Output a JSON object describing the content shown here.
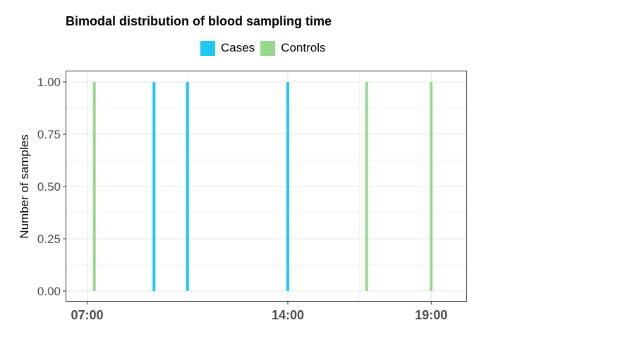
{
  "chart_data": {
    "type": "bar",
    "title": "Bimodal distribution of blood sampling time",
    "xlabel": "",
    "ylabel": "Number of samples",
    "xlim": [
      "06:15",
      "20:15"
    ],
    "ylim": [
      0,
      1.05
    ],
    "y_ticks": [
      0.0,
      0.25,
      0.5,
      0.75,
      1.0
    ],
    "y_tick_labels": [
      "0.00",
      "0.25",
      "0.50",
      "0.75",
      "1.00"
    ],
    "x_ticks": [
      "07:00",
      "14:00",
      "19:00"
    ],
    "x_tick_labels": [
      "07:00",
      "14:00",
      "19:00"
    ],
    "grid": true,
    "legend_position": "top",
    "series": [
      {
        "name": "Cases",
        "color": "#1EC8F0",
        "points": [
          {
            "x": "09:20",
            "y": 1
          },
          {
            "x": "10:30",
            "y": 1
          },
          {
            "x": "14:00",
            "y": 1
          }
        ]
      },
      {
        "name": "Controls",
        "color": "#97D98A",
        "points": [
          {
            "x": "07:15",
            "y": 1
          },
          {
            "x": "16:45",
            "y": 1
          },
          {
            "x": "19:00",
            "y": 1
          }
        ]
      }
    ]
  }
}
